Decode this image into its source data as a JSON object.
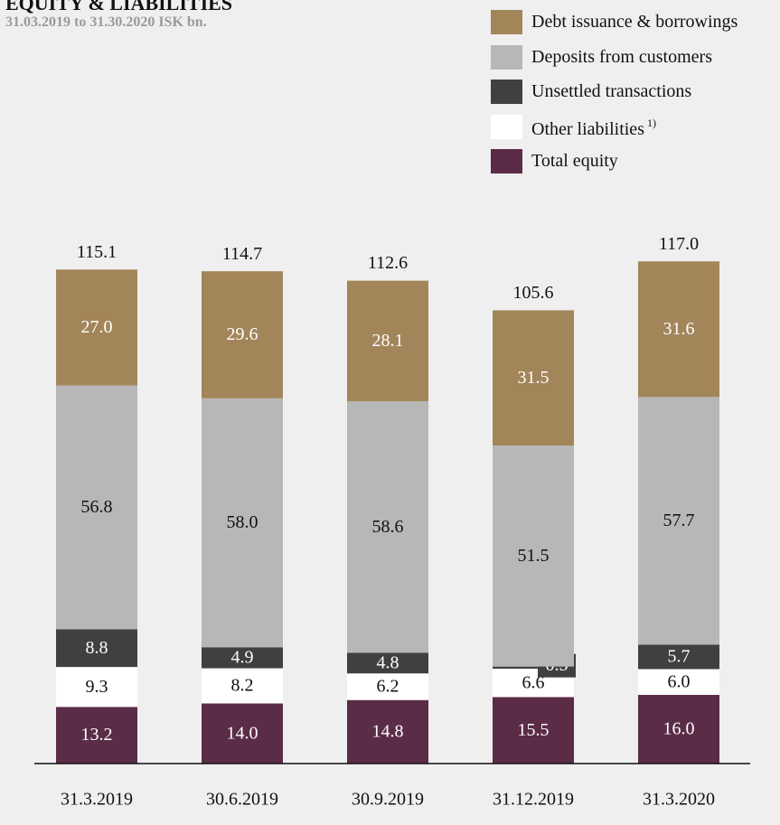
{
  "header": {
    "title": "EQUITY & LIABILITIES",
    "subtitle": "31.03.2019 to 31.30.2020 ISK bn."
  },
  "legend": {
    "items": [
      {
        "label": "Debt issuance & borrowings",
        "color": "#a3855a"
      },
      {
        "label": "Deposits from customers",
        "color": "#b7b7b7"
      },
      {
        "label": "Unsettled transactions",
        "color": "#404040"
      },
      {
        "label": "Other liabilities",
        "sup": "1)",
        "color": "#ffffff"
      },
      {
        "label": "Total equity",
        "color": "#5b2c48"
      }
    ]
  },
  "chart_data": {
    "type": "bar",
    "stacked": true,
    "categories": [
      "31.3.2019",
      "30.6.2019",
      "30.9.2019",
      "31.12.2019",
      "31.3.2020"
    ],
    "totals": [
      "115.1",
      "114.7",
      "112.6",
      "105.6",
      "117.0"
    ],
    "series": [
      {
        "name": "Total equity",
        "color": "#5b2c48",
        "label_color": "#ffffff",
        "values": [
          13.2,
          14.0,
          14.8,
          15.5,
          16.0
        ],
        "labels": [
          "13.2",
          "14.0",
          "14.8",
          "15.5",
          "16.0"
        ]
      },
      {
        "name": "Other liabilities",
        "color": "#ffffff",
        "label_color": "#111111",
        "values": [
          9.3,
          8.2,
          6.2,
          6.6,
          6.0
        ],
        "labels": [
          "9.3",
          "8.2",
          "6.2",
          "6.6",
          "6.0"
        ]
      },
      {
        "name": "Unsettled transactions",
        "color": "#404040",
        "label_color": "#ffffff",
        "values": [
          8.8,
          4.9,
          4.8,
          0.5,
          5.7
        ],
        "labels": [
          "8.8",
          "4.9",
          "4.8",
          "0.5",
          "5.7"
        ]
      },
      {
        "name": "Deposits from customers",
        "color": "#b7b7b7",
        "label_color": "#111111",
        "values": [
          56.8,
          58.0,
          58.6,
          51.5,
          57.7
        ],
        "labels": [
          "56.8",
          "58.0",
          "58.6",
          "51.5",
          "57.7"
        ]
      },
      {
        "name": "Debt issuance & borrowings",
        "color": "#a3855a",
        "label_color": "#ffffff",
        "values": [
          27.0,
          29.6,
          28.1,
          31.5,
          31.6
        ],
        "labels": [
          "27.0",
          "29.6",
          "28.1",
          "31.5",
          "31.6"
        ]
      }
    ],
    "ylim": [
      0,
      117
    ]
  }
}
